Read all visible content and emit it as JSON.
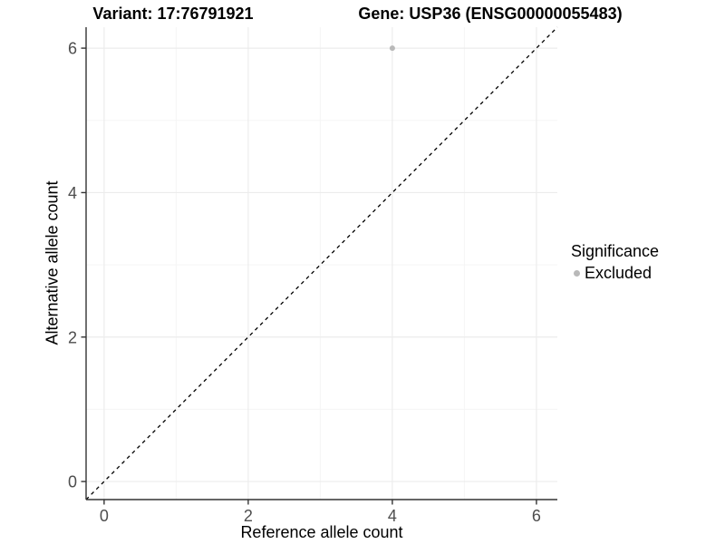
{
  "chart_data": {
    "type": "scatter",
    "titles": {
      "variant": "Variant: 17:76791921",
      "gene": "Gene: USP36 (ENSG00000055483)"
    },
    "xlabel": "Reference allele count",
    "ylabel": "Alternative allele count",
    "x_ticks": [
      0,
      2,
      4,
      6
    ],
    "y_ticks": [
      0,
      2,
      4,
      6
    ],
    "x_minor_ticks": [
      1,
      3,
      5
    ],
    "y_minor_ticks": [
      1,
      3,
      5
    ],
    "xlim": [
      -0.25,
      6.29
    ],
    "ylim": [
      -0.25,
      6.29
    ],
    "grid": true,
    "points": [
      {
        "x": 4,
        "y": 6,
        "series": "Excluded"
      }
    ],
    "reference_line": {
      "style": "dashed",
      "slope": 1,
      "intercept": 0
    },
    "legend": {
      "title": "Significance",
      "position": "right",
      "entries": [
        {
          "label": "Excluded",
          "color": "#b9b9b9"
        }
      ]
    },
    "colors": {
      "point": "#b9b9b9",
      "grid_major": "#ececec",
      "grid_minor": "#f5f5f5",
      "axis_line": "#333333",
      "tick_text": "#4d4d4d",
      "title_text": "#000000",
      "dashed_line": "#000000"
    }
  }
}
